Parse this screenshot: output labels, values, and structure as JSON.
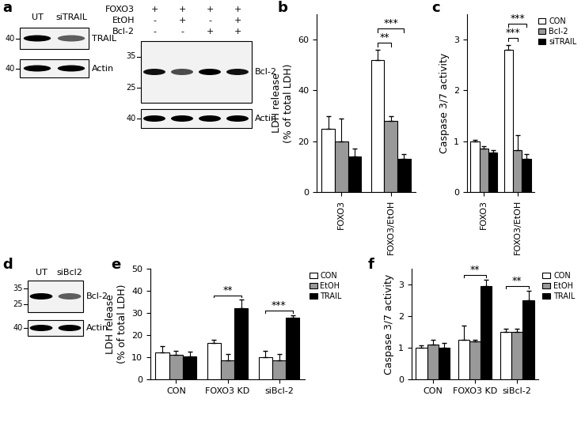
{
  "chart_data": [
    {
      "panel": "b",
      "type": "bar",
      "y_label": "LDH release\n(% of total LDH)",
      "categories": [
        "FOXO3",
        "FOXO3/EtOH"
      ],
      "series": [
        {
          "color": "#ffffff",
          "values": [
            25,
            52
          ],
          "errors": [
            5,
            4
          ]
        },
        {
          "color": "#999999",
          "values": [
            20,
            28
          ],
          "errors": [
            9,
            2
          ]
        },
        {
          "color": "#000000",
          "values": [
            14,
            13
          ],
          "errors": [
            3,
            2
          ]
        }
      ],
      "ylim": [
        0,
        70
      ],
      "yticks": [
        0,
        20,
        40,
        60
      ],
      "annotations": [
        {
          "category": "FOXO3/EtOH",
          "series": [
            0,
            1
          ],
          "text": "**"
        },
        {
          "category": "FOXO3/EtOH",
          "series": [
            0,
            2
          ],
          "text": "***"
        }
      ]
    },
    {
      "panel": "c",
      "type": "bar",
      "y_label": "Caspase 3/7 activity",
      "categories": [
        "FOXO3",
        "FOXO3/EtOH"
      ],
      "series": [
        {
          "name": "CON",
          "color": "#ffffff",
          "values": [
            1.0,
            2.8
          ],
          "errors": [
            0.03,
            0.1
          ]
        },
        {
          "name": "Bcl-2",
          "color": "#999999",
          "values": [
            0.85,
            0.82
          ],
          "errors": [
            0.05,
            0.3
          ]
        },
        {
          "name": "siTRAIL",
          "color": "#000000",
          "values": [
            0.78,
            0.65
          ],
          "errors": [
            0.05,
            0.1
          ]
        }
      ],
      "ylim": [
        0,
        3.5
      ],
      "yticks": [
        0,
        1,
        2,
        3
      ],
      "legend": "right",
      "annotations": [
        {
          "category": "FOXO3/EtOH",
          "series": [
            0,
            1
          ],
          "text": "***"
        },
        {
          "category": "FOXO3/EtOH",
          "series": [
            0,
            2
          ],
          "text": "***"
        }
      ]
    },
    {
      "panel": "e",
      "type": "bar",
      "y_label": "LDH release\n(% of total LDH)",
      "categories": [
        "CON",
        "FOXO3 KD",
        "siBcl-2"
      ],
      "series": [
        {
          "name": "CON",
          "color": "#ffffff",
          "values": [
            12,
            16.5,
            10
          ],
          "errors": [
            3,
            1.5,
            3
          ]
        },
        {
          "name": "EtOH",
          "color": "#999999",
          "values": [
            11,
            8.5,
            8.5
          ],
          "errors": [
            2,
            3,
            3
          ]
        },
        {
          "name": "TRAIL",
          "color": "#000000",
          "values": [
            10.5,
            32,
            28
          ],
          "errors": [
            2,
            4,
            1
          ]
        }
      ],
      "ylim": [
        0,
        50
      ],
      "yticks": [
        0,
        10,
        20,
        30,
        40,
        50
      ],
      "legend": "right",
      "annotations": [
        {
          "category": "FOXO3 KD",
          "series": [
            0,
            2
          ],
          "text": "**"
        },
        {
          "category": "siBcl-2",
          "series": [
            0,
            2
          ],
          "text": "***"
        }
      ]
    },
    {
      "panel": "f",
      "type": "bar",
      "y_label": "Caspase 3/7 activity",
      "categories": [
        "CON",
        "FOXO3 KD",
        "siBcl-2"
      ],
      "series": [
        {
          "name": "CON",
          "color": "#ffffff",
          "values": [
            1.0,
            1.25,
            1.5
          ],
          "errors": [
            0.08,
            0.45,
            0.1
          ]
        },
        {
          "name": "EtOH",
          "color": "#999999",
          "values": [
            1.1,
            1.2,
            1.5
          ],
          "errors": [
            0.15,
            0.05,
            0.1
          ]
        },
        {
          "name": "TRAIL",
          "color": "#000000",
          "values": [
            1.0,
            2.95,
            2.5
          ],
          "errors": [
            0.15,
            0.2,
            0.3
          ]
        }
      ],
      "ylim": [
        0,
        3.5
      ],
      "yticks": [
        0,
        1,
        2,
        3
      ],
      "legend": "right",
      "annotations": [
        {
          "category": "FOXO3 KD",
          "series": [
            0,
            2
          ],
          "text": "**"
        },
        {
          "category": "siBcl-2",
          "series": [
            0,
            2
          ],
          "text": "**"
        }
      ]
    }
  ],
  "blots": [
    {
      "panel": "a",
      "lanes": [
        "UT",
        "siTRAIL"
      ],
      "rows": [
        {
          "label": "TRAIL",
          "markers": [
            40
          ]
        },
        {
          "label": "Actin",
          "markers": [
            40
          ]
        }
      ]
    },
    {
      "conditions": [
        {
          "label": "FOXO3",
          "signs": [
            "+",
            "+",
            "+",
            "+"
          ]
        },
        {
          "label": "EtOH",
          "signs": [
            "-",
            "+",
            "-",
            "+"
          ]
        },
        {
          "label": "Bcl-2",
          "signs": [
            "-",
            "-",
            "+",
            "+"
          ]
        }
      ],
      "rows": [
        {
          "label": "Bcl-2",
          "markers": [
            35,
            25
          ]
        },
        {
          "label": "Actin",
          "markers": [
            40
          ]
        }
      ]
    },
    {
      "panel": "d",
      "lanes": [
        "UT",
        "siBcl2"
      ],
      "rows": [
        {
          "label": "Bcl-2",
          "markers": [
            35,
            25
          ]
        },
        {
          "label": "Actin",
          "markers": [
            40
          ]
        }
      ]
    }
  ]
}
